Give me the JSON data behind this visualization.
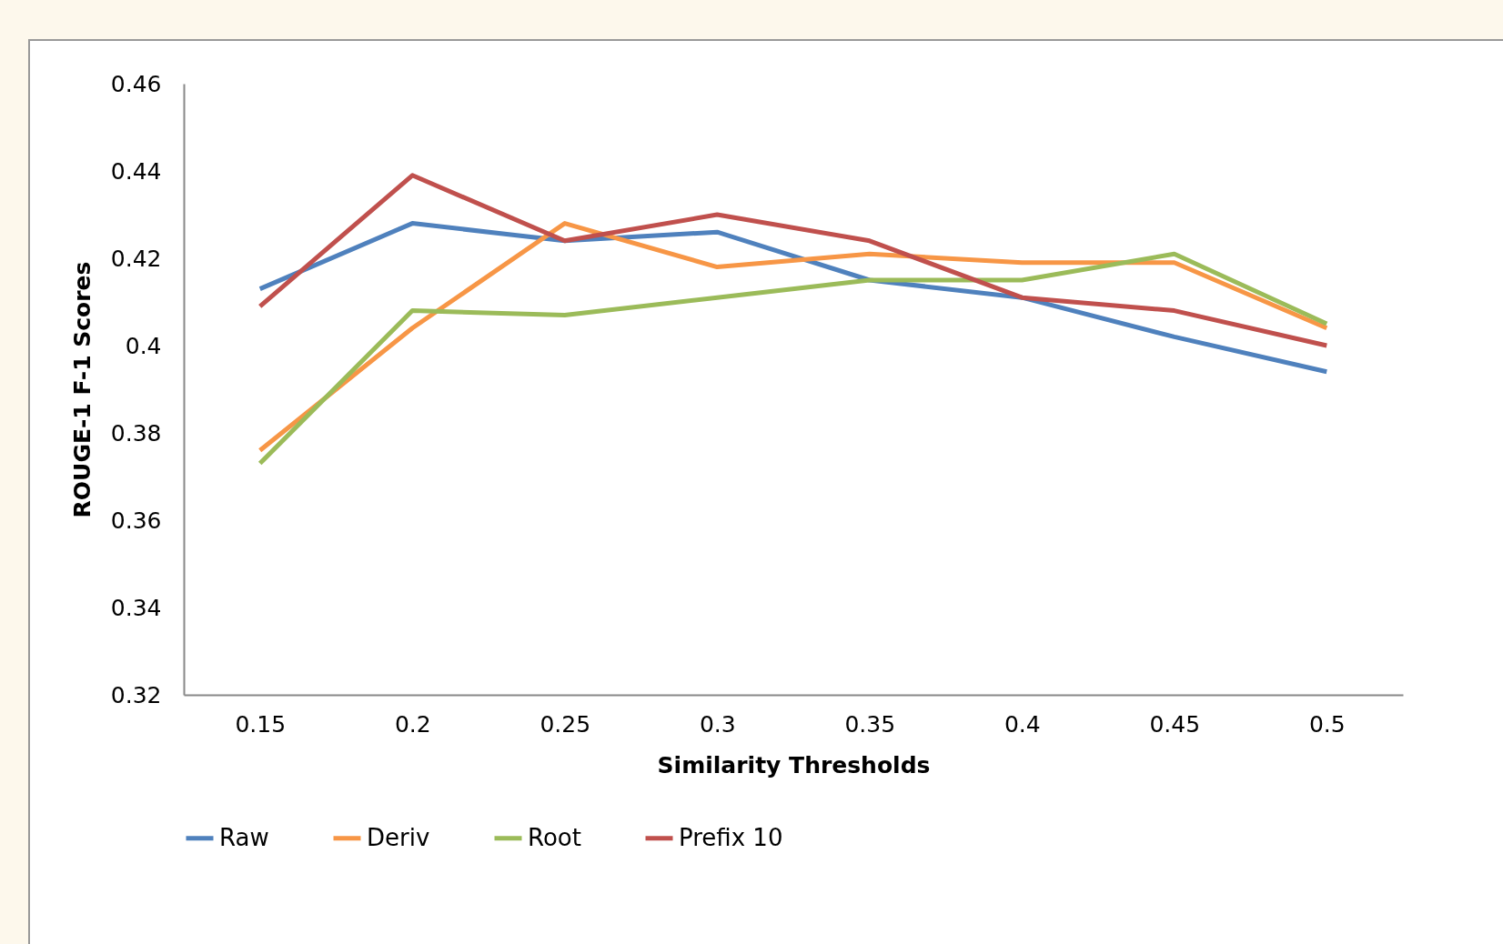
{
  "chart_data": {
    "type": "line",
    "xlabel": "Similarity Thresholds",
    "ylabel": "ROUGE-1 F-1 Scores",
    "categories": [
      "0.15",
      "0.2",
      "0.25",
      "0.3",
      "0.35",
      "0.4",
      "0.45",
      "0.5"
    ],
    "series": [
      {
        "name": "Raw",
        "color": "#4f81bd",
        "values": [
          0.413,
          0.428,
          0.424,
          0.426,
          0.415,
          0.411,
          0.402,
          0.394
        ]
      },
      {
        "name": "Deriv",
        "color": "#f79646",
        "values": [
          0.376,
          0.404,
          0.428,
          0.418,
          0.421,
          0.419,
          0.419,
          0.404
        ]
      },
      {
        "name": "Root",
        "color": "#9bbb59",
        "values": [
          0.373,
          0.408,
          0.407,
          0.411,
          0.415,
          0.415,
          0.421,
          0.405
        ]
      },
      {
        "name": "Prefix 10",
        "color": "#c0504d",
        "values": [
          0.409,
          0.439,
          0.424,
          0.43,
          0.424,
          0.411,
          0.408,
          0.4
        ]
      }
    ],
    "ylim": [
      0.32,
      0.46
    ],
    "yticks": [
      0.32,
      0.34,
      0.36,
      0.38,
      0.4,
      0.42,
      0.44,
      0.46
    ],
    "grid": false,
    "legend": "bottom",
    "marker": "none",
    "line_style": "solid"
  }
}
